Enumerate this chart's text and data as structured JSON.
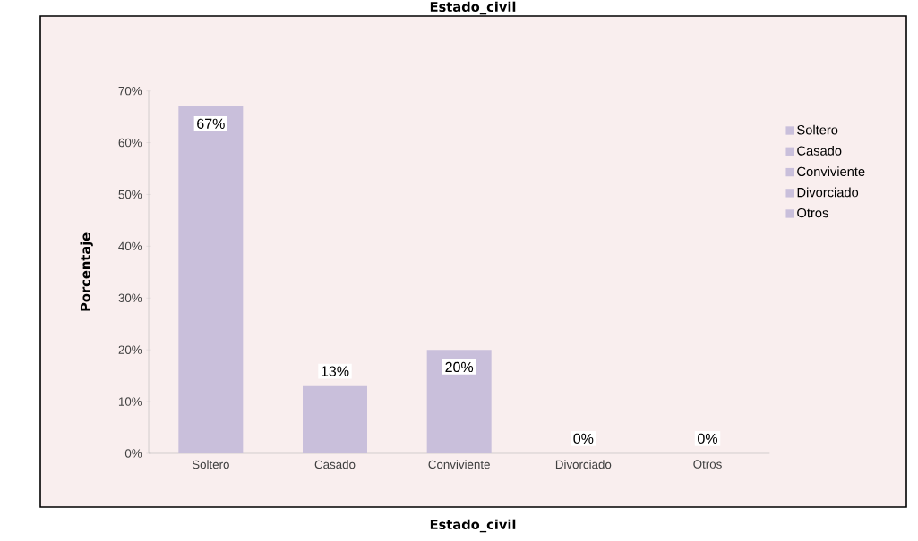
{
  "chart_data": {
    "type": "bar",
    "title": "Estado_civil",
    "xlabel": "Estado_civil",
    "ylabel": "Porcentaje",
    "categories": [
      "Soltero",
      "Casado",
      "Conviviente",
      "Divorciado",
      "Otros"
    ],
    "series": [
      {
        "name": "Soltero",
        "color": "#c9bfdb",
        "values": [
          67,
          null,
          null,
          null,
          null
        ],
        "value_labels": [
          "67%",
          null,
          null,
          null,
          null
        ]
      },
      {
        "name": "Casado",
        "color": "#c9bfdb",
        "values": [
          null,
          13,
          null,
          null,
          null
        ],
        "value_labels": [
          null,
          "13%",
          null,
          null,
          null
        ]
      },
      {
        "name": "Conviviente",
        "color": "#c9bfdb",
        "values": [
          null,
          null,
          20,
          null,
          null
        ],
        "value_labels": [
          null,
          null,
          "20%",
          null,
          null
        ]
      },
      {
        "name": "Divorciado",
        "color": "#c9bfdb",
        "values": [
          null,
          null,
          null,
          0,
          null
        ],
        "value_labels": [
          null,
          null,
          null,
          "0%",
          null
        ]
      },
      {
        "name": "Otros",
        "color": "#c9bfdb",
        "values": [
          null,
          null,
          null,
          null,
          0
        ],
        "value_labels": [
          null,
          null,
          null,
          null,
          "0%"
        ]
      }
    ],
    "ylim": [
      0,
      70
    ],
    "yticks": [
      {
        "value": 0,
        "label": "0%"
      },
      {
        "value": 10,
        "label": "10%"
      },
      {
        "value": 20,
        "label": "20%"
      },
      {
        "value": 30,
        "label": "30%"
      },
      {
        "value": 40,
        "label": "40%"
      },
      {
        "value": 50,
        "label": "50%"
      },
      {
        "value": 60,
        "label": "60%"
      },
      {
        "value": 70,
        "label": "70%"
      }
    ],
    "legend": "right",
    "grid": false
  }
}
